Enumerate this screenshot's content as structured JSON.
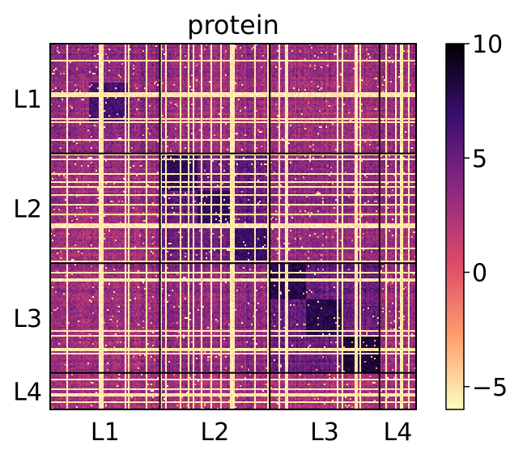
{
  "chart_data": {
    "type": "heatmap",
    "title": "protein",
    "xlabel": "",
    "ylabel": "",
    "colormap": "magma_r",
    "colorbar": {
      "range": [
        -6,
        10
      ],
      "ticks": [
        10,
        5,
        0,
        -5
      ],
      "tick_labels": [
        "10",
        "5",
        "0",
        "−5"
      ]
    },
    "blocks": [
      "L1",
      "L2",
      "L3",
      "L4"
    ],
    "block_fractions": [
      0.3,
      0.3,
      0.3,
      0.1
    ],
    "x_tick_labels": [
      "L1",
      "L2",
      "L3",
      "L4"
    ],
    "y_tick_labels": [
      "L1",
      "L2",
      "L3",
      "L4"
    ],
    "block_means": [
      [
        3.5,
        3.0,
        3.0,
        3.0
      ],
      [
        3.0,
        5.0,
        3.5,
        3.0
      ],
      [
        3.0,
        3.5,
        5.0,
        3.0
      ],
      [
        3.0,
        3.0,
        3.0,
        3.0
      ]
    ],
    "diagonal_subclusters": [
      {
        "block": "L1",
        "value": 6.5
      },
      {
        "block": "L2",
        "value": 7.5
      },
      {
        "block": "L2",
        "value": 7.5
      },
      {
        "block": "L2",
        "value": 7.0
      },
      {
        "block": "L3",
        "value": 8.0
      },
      {
        "block": "L3",
        "value": 8.0
      },
      {
        "block": "L3",
        "value": 8.5
      }
    ]
  },
  "colors": {
    "block_border": "#000000",
    "gap_line": "#fff7c0",
    "magma_r_stops": [
      "#fcfdbf",
      "#fe9f6d",
      "#de4968",
      "#8c2981",
      "#3b0f70",
      "#000004"
    ]
  }
}
